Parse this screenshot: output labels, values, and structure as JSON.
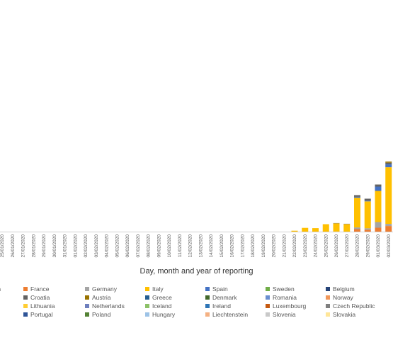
{
  "chart_data": {
    "type": "bar",
    "stacked": true,
    "xlabel": "Day, month and year of reporting",
    "categories": [
      "25/01/2020",
      "26/01/2020",
      "27/01/2020",
      "28/01/2020",
      "29/01/2020",
      "30/01/2020",
      "31/01/2020",
      "01/02/2020",
      "02/02/2020",
      "03/02/2020",
      "04/02/2020",
      "05/02/2020",
      "06/02/2020",
      "07/02/2020",
      "08/02/2020",
      "09/02/2020",
      "10/02/2020",
      "11/02/2020",
      "12/02/2020",
      "13/02/2020",
      "14/02/2020",
      "15/02/2020",
      "16/02/2020",
      "17/02/2020",
      "18/02/2020",
      "19/02/2020",
      "20/02/2020",
      "21/02/2020",
      "22/02/2020",
      "23/02/2020",
      "24/02/2020",
      "25/02/2020",
      "26/02/2020",
      "27/02/2020",
      "28/02/2020",
      "29/02/2020",
      "01/03/2020",
      "02/03/2020"
    ],
    "series": [
      {
        "name": "France",
        "color": "#ed7d31",
        "values": [
          0,
          0,
          0,
          0,
          0,
          0,
          1,
          0,
          0,
          0,
          0,
          0,
          0,
          0,
          1,
          1,
          0,
          0,
          0,
          0,
          0,
          0,
          0,
          0,
          0,
          0,
          0,
          0,
          0,
          0,
          0,
          2,
          3,
          2,
          20,
          16,
          30,
          42
        ]
      },
      {
        "name": "Germany",
        "color": "#a5a5a5",
        "values": [
          0,
          0,
          0,
          0,
          0,
          0,
          0,
          0,
          0,
          0,
          0,
          0,
          0,
          0,
          0,
          0,
          0,
          0,
          0,
          0,
          0,
          0,
          0,
          0,
          0,
          0,
          0,
          0,
          0,
          0,
          0,
          0,
          0,
          0,
          12,
          10,
          40,
          15
        ]
      },
      {
        "name": "Italy",
        "color": "#ffc000",
        "values": [
          0,
          0,
          0,
          0,
          0,
          0,
          0,
          0,
          0,
          0,
          0,
          0,
          0,
          0,
          0,
          0,
          0,
          0,
          0,
          0,
          0,
          0,
          0,
          0,
          0,
          0,
          0,
          0,
          9,
          29,
          27,
          53,
          58,
          54,
          210,
          190,
          220,
          400
        ]
      },
      {
        "name": "Spain",
        "color": "#4472c4",
        "values": [
          0,
          0,
          0,
          0,
          0,
          0,
          0,
          0,
          0,
          0,
          0,
          0,
          0,
          0,
          0,
          0,
          0,
          0,
          0,
          0,
          0,
          0,
          0,
          0,
          0,
          0,
          0,
          0,
          0,
          0,
          0,
          0,
          0,
          0,
          6,
          5,
          30,
          20
        ]
      },
      {
        "name": "Sweden",
        "color": "#70ad47",
        "values": [
          0,
          0,
          0,
          0,
          0,
          0,
          0,
          0,
          0,
          0,
          0,
          0,
          0,
          0,
          0,
          0,
          0,
          0,
          0,
          0,
          0,
          0,
          0,
          0,
          0,
          0,
          0,
          0,
          0,
          0,
          0,
          0,
          0,
          0,
          0,
          0,
          0,
          0
        ]
      },
      {
        "name": "Belgium",
        "color": "#264478",
        "values": [
          0,
          0,
          0,
          0,
          0,
          0,
          0,
          0,
          0,
          0,
          0,
          0,
          0,
          0,
          0,
          0,
          0,
          0,
          0,
          0,
          0,
          0,
          0,
          0,
          0,
          0,
          0,
          0,
          0,
          0,
          0,
          0,
          0,
          0,
          0,
          0,
          0,
          0
        ]
      },
      {
        "name": "Croatia",
        "color": "#636363",
        "values": [
          0,
          0,
          0,
          0,
          0,
          0,
          0,
          0,
          0,
          0,
          0,
          0,
          0,
          0,
          0,
          0,
          0,
          0,
          0,
          0,
          0,
          0,
          0,
          0,
          0,
          0,
          0,
          0,
          0,
          0,
          0,
          0,
          2,
          2,
          12,
          14,
          15,
          12
        ]
      },
      {
        "name": "Austria",
        "color": "#997300",
        "values": [
          0,
          0,
          0,
          0,
          0,
          0,
          0,
          0,
          0,
          0,
          0,
          0,
          0,
          0,
          0,
          0,
          0,
          0,
          0,
          0,
          0,
          0,
          0,
          0,
          0,
          0,
          0,
          0,
          0,
          0,
          0,
          0,
          0,
          0,
          0,
          0,
          0,
          8
        ]
      },
      {
        "name": "Greece",
        "color": "#255e91",
        "values": [
          0,
          0,
          0,
          0,
          0,
          0,
          0,
          0,
          0,
          0,
          0,
          0,
          0,
          0,
          0,
          0,
          0,
          0,
          0,
          0,
          0,
          0,
          0,
          0,
          0,
          0,
          0,
          0,
          0,
          0,
          0,
          0,
          0,
          0,
          0,
          0,
          0,
          0
        ]
      },
      {
        "name": "Denmark",
        "color": "#43682b",
        "values": [
          0,
          0,
          0,
          0,
          0,
          0,
          0,
          0,
          0,
          0,
          0,
          0,
          0,
          0,
          0,
          0,
          0,
          0,
          0,
          0,
          0,
          0,
          0,
          0,
          0,
          0,
          0,
          0,
          0,
          0,
          0,
          0,
          0,
          0,
          0,
          0,
          0,
          0
        ]
      },
      {
        "name": "Romania",
        "color": "#698ed0",
        "values": [
          0,
          0,
          0,
          0,
          0,
          0,
          0,
          0,
          0,
          0,
          0,
          0,
          0,
          0,
          0,
          0,
          0,
          0,
          0,
          0,
          0,
          0,
          0,
          0,
          0,
          0,
          0,
          0,
          0,
          0,
          0,
          0,
          0,
          0,
          0,
          0,
          0,
          0
        ]
      },
      {
        "name": "Norway",
        "color": "#f1975a",
        "values": [
          0,
          0,
          0,
          0,
          0,
          0,
          0,
          0,
          0,
          0,
          0,
          0,
          0,
          0,
          0,
          0,
          0,
          0,
          0,
          0,
          0,
          0,
          0,
          0,
          0,
          0,
          0,
          0,
          0,
          0,
          0,
          0,
          0,
          0,
          0,
          0,
          0,
          0
        ]
      },
      {
        "name": "Lithuania",
        "color": "#ffcd33",
        "values": [
          0,
          0,
          0,
          0,
          0,
          0,
          0,
          0,
          0,
          0,
          0,
          0,
          0,
          0,
          0,
          0,
          0,
          0,
          0,
          0,
          0,
          0,
          0,
          0,
          0,
          0,
          0,
          0,
          0,
          0,
          0,
          0,
          0,
          0,
          0,
          0,
          0,
          0
        ]
      },
      {
        "name": "Netherlands",
        "color": "#6e7fbd",
        "values": [
          0,
          0,
          0,
          0,
          0,
          0,
          0,
          0,
          0,
          0,
          0,
          0,
          0,
          0,
          0,
          0,
          0,
          0,
          0,
          0,
          0,
          0,
          0,
          0,
          0,
          0,
          0,
          0,
          0,
          0,
          0,
          0,
          0,
          0,
          0,
          0,
          0,
          0
        ]
      },
      {
        "name": "Iceland",
        "color": "#8cc168",
        "values": [
          0,
          0,
          0,
          0,
          0,
          0,
          0,
          0,
          0,
          0,
          0,
          0,
          0,
          0,
          0,
          0,
          0,
          0,
          0,
          0,
          0,
          0,
          0,
          0,
          0,
          0,
          0,
          0,
          0,
          0,
          0,
          0,
          0,
          0,
          0,
          0,
          0,
          0
        ]
      },
      {
        "name": "Ireland",
        "color": "#2e75b6",
        "values": [
          0,
          0,
          0,
          0,
          0,
          0,
          0,
          0,
          0,
          0,
          0,
          0,
          0,
          0,
          0,
          0,
          0,
          0,
          0,
          0,
          0,
          0,
          0,
          0,
          0,
          0,
          0,
          0,
          0,
          0,
          0,
          0,
          0,
          0,
          0,
          0,
          0,
          0
        ]
      },
      {
        "name": "Luxembourg",
        "color": "#c55a11",
        "values": [
          0,
          0,
          0,
          0,
          0,
          0,
          0,
          0,
          0,
          0,
          0,
          0,
          0,
          0,
          0,
          0,
          0,
          0,
          0,
          0,
          0,
          0,
          0,
          0,
          0,
          0,
          0,
          0,
          0,
          0,
          0,
          0,
          0,
          0,
          0,
          0,
          0,
          0
        ]
      },
      {
        "name": "Czech Republic",
        "color": "#7f7f7f",
        "values": [
          0,
          0,
          0,
          0,
          0,
          0,
          0,
          0,
          0,
          0,
          0,
          0,
          0,
          0,
          0,
          0,
          0,
          0,
          0,
          0,
          0,
          0,
          0,
          0,
          0,
          0,
          0,
          0,
          0,
          0,
          0,
          0,
          0,
          0,
          0,
          0,
          0,
          0
        ]
      },
      {
        "name": "Portugal",
        "color": "#2f5597",
        "values": [
          0,
          0,
          0,
          0,
          0,
          0,
          0,
          0,
          0,
          0,
          0,
          0,
          0,
          0,
          0,
          0,
          0,
          0,
          0,
          0,
          0,
          0,
          0,
          0,
          0,
          0,
          0,
          0,
          0,
          0,
          0,
          0,
          0,
          0,
          0,
          0,
          0,
          0
        ]
      },
      {
        "name": "Poland",
        "color": "#548235",
        "values": [
          0,
          0,
          0,
          0,
          0,
          0,
          0,
          0,
          0,
          0,
          0,
          0,
          0,
          0,
          0,
          0,
          0,
          0,
          0,
          0,
          0,
          0,
          0,
          0,
          0,
          0,
          0,
          0,
          0,
          0,
          0,
          0,
          0,
          0,
          0,
          0,
          0,
          0
        ]
      },
      {
        "name": "Hungary",
        "color": "#9dc3e6",
        "values": [
          0,
          0,
          0,
          0,
          0,
          0,
          0,
          0,
          0,
          0,
          0,
          0,
          0,
          0,
          0,
          0,
          0,
          0,
          0,
          0,
          0,
          0,
          0,
          0,
          0,
          0,
          0,
          0,
          0,
          0,
          0,
          0,
          0,
          0,
          0,
          0,
          0,
          0
        ]
      },
      {
        "name": "Liechtenstein",
        "color": "#f4b183",
        "values": [
          0,
          0,
          0,
          0,
          0,
          0,
          0,
          0,
          0,
          0,
          0,
          0,
          0,
          0,
          0,
          0,
          0,
          0,
          0,
          0,
          0,
          0,
          0,
          0,
          0,
          0,
          0,
          0,
          0,
          0,
          0,
          0,
          0,
          0,
          0,
          0,
          0,
          0
        ]
      },
      {
        "name": "Slovenia",
        "color": "#c9c9c9",
        "values": [
          0,
          0,
          0,
          0,
          0,
          0,
          0,
          0,
          0,
          0,
          0,
          0,
          0,
          0,
          0,
          0,
          0,
          0,
          0,
          0,
          0,
          0,
          0,
          0,
          0,
          0,
          0,
          0,
          0,
          0,
          0,
          0,
          0,
          0,
          0,
          0,
          0,
          0
        ]
      },
      {
        "name": "Slovakia",
        "color": "#ffe699",
        "values": [
          0,
          0,
          0,
          0,
          0,
          0,
          0,
          0,
          0,
          0,
          0,
          0,
          0,
          0,
          0,
          0,
          0,
          0,
          0,
          0,
          0,
          0,
          0,
          0,
          0,
          0,
          0,
          0,
          0,
          0,
          0,
          0,
          0,
          0,
          0,
          0,
          0,
          0
        ]
      }
    ],
    "legend_partial_first_entry": "m",
    "grid": false,
    "legend_position": "bottom"
  }
}
